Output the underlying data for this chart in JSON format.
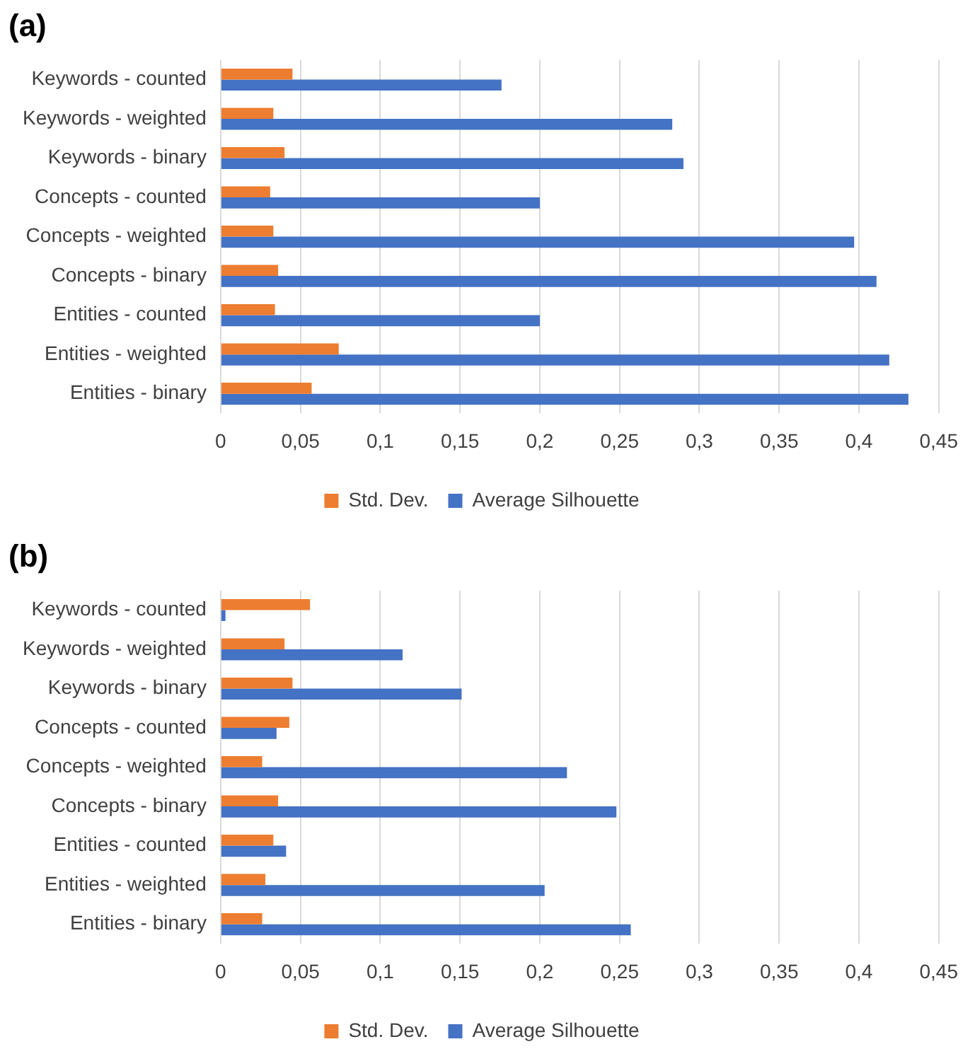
{
  "chart_data": [
    {
      "type": "bar",
      "orientation": "horizontal",
      "title": "(a)",
      "categories": [
        "Keywords - counted",
        "Keywords - weighted",
        "Keywords - binary",
        "Concepts - counted",
        "Concepts - weighted",
        "Concepts - binary",
        "Entities - counted",
        "Entities - weighted",
        "Entities - binary"
      ],
      "series": [
        {
          "name": "Std. Dev.",
          "color": "#ed7d31",
          "values": [
            0.045,
            0.033,
            0.04,
            0.031,
            0.033,
            0.036,
            0.034,
            0.074,
            0.057
          ]
        },
        {
          "name": "Average Silhouette",
          "color": "#4472c4",
          "values": [
            0.176,
            0.283,
            0.29,
            0.2,
            0.397,
            0.411,
            0.2,
            0.419,
            0.431
          ]
        }
      ],
      "xlim": [
        0,
        0.45
      ],
      "xticks": [
        0,
        {
          "value": 0.05,
          "label": "0,05"
        },
        {
          "value": 0.1,
          "label": "0,1"
        },
        {
          "value": 0.15,
          "label": "0,15"
        },
        {
          "value": 0.2,
          "label": "0,2"
        },
        {
          "value": 0.25,
          "label": "0,25"
        },
        {
          "value": 0.3,
          "label": "0,3"
        },
        {
          "value": 0.35,
          "label": "0,35"
        },
        {
          "value": 0.4,
          "label": "0,4"
        },
        {
          "value": 0.45,
          "label": "0,45"
        }
      ],
      "grid": "x",
      "legend": "bottom"
    },
    {
      "type": "bar",
      "orientation": "horizontal",
      "title": "(b)",
      "categories": [
        "Keywords - counted",
        "Keywords - weighted",
        "Keywords - binary",
        "Concepts - counted",
        "Concepts - weighted",
        "Concepts - binary",
        "Entities - counted",
        "Entities - weighted",
        "Entities - binary"
      ],
      "series": [
        {
          "name": "Std. Dev.",
          "color": "#ed7d31",
          "values": [
            0.056,
            0.04,
            0.045,
            0.043,
            0.026,
            0.036,
            0.033,
            0.028,
            0.026
          ]
        },
        {
          "name": "Average Silhouette",
          "color": "#4472c4",
          "values": [
            0.003,
            0.114,
            0.151,
            0.035,
            0.217,
            0.248,
            0.041,
            0.203,
            0.257
          ]
        }
      ],
      "xlim": [
        0,
        0.45
      ],
      "xticks": [
        0,
        {
          "value": 0.05,
          "label": "0,05"
        },
        {
          "value": 0.1,
          "label": "0,1"
        },
        {
          "value": 0.15,
          "label": "0,15"
        },
        {
          "value": 0.2,
          "label": "0,2"
        },
        {
          "value": 0.25,
          "label": "0,25"
        },
        {
          "value": 0.3,
          "label": "0,3"
        },
        {
          "value": 0.35,
          "label": "0,35"
        },
        {
          "value": 0.4,
          "label": "0,4"
        },
        {
          "value": 0.45,
          "label": "0,45"
        }
      ],
      "grid": "x",
      "legend": "bottom"
    }
  ]
}
